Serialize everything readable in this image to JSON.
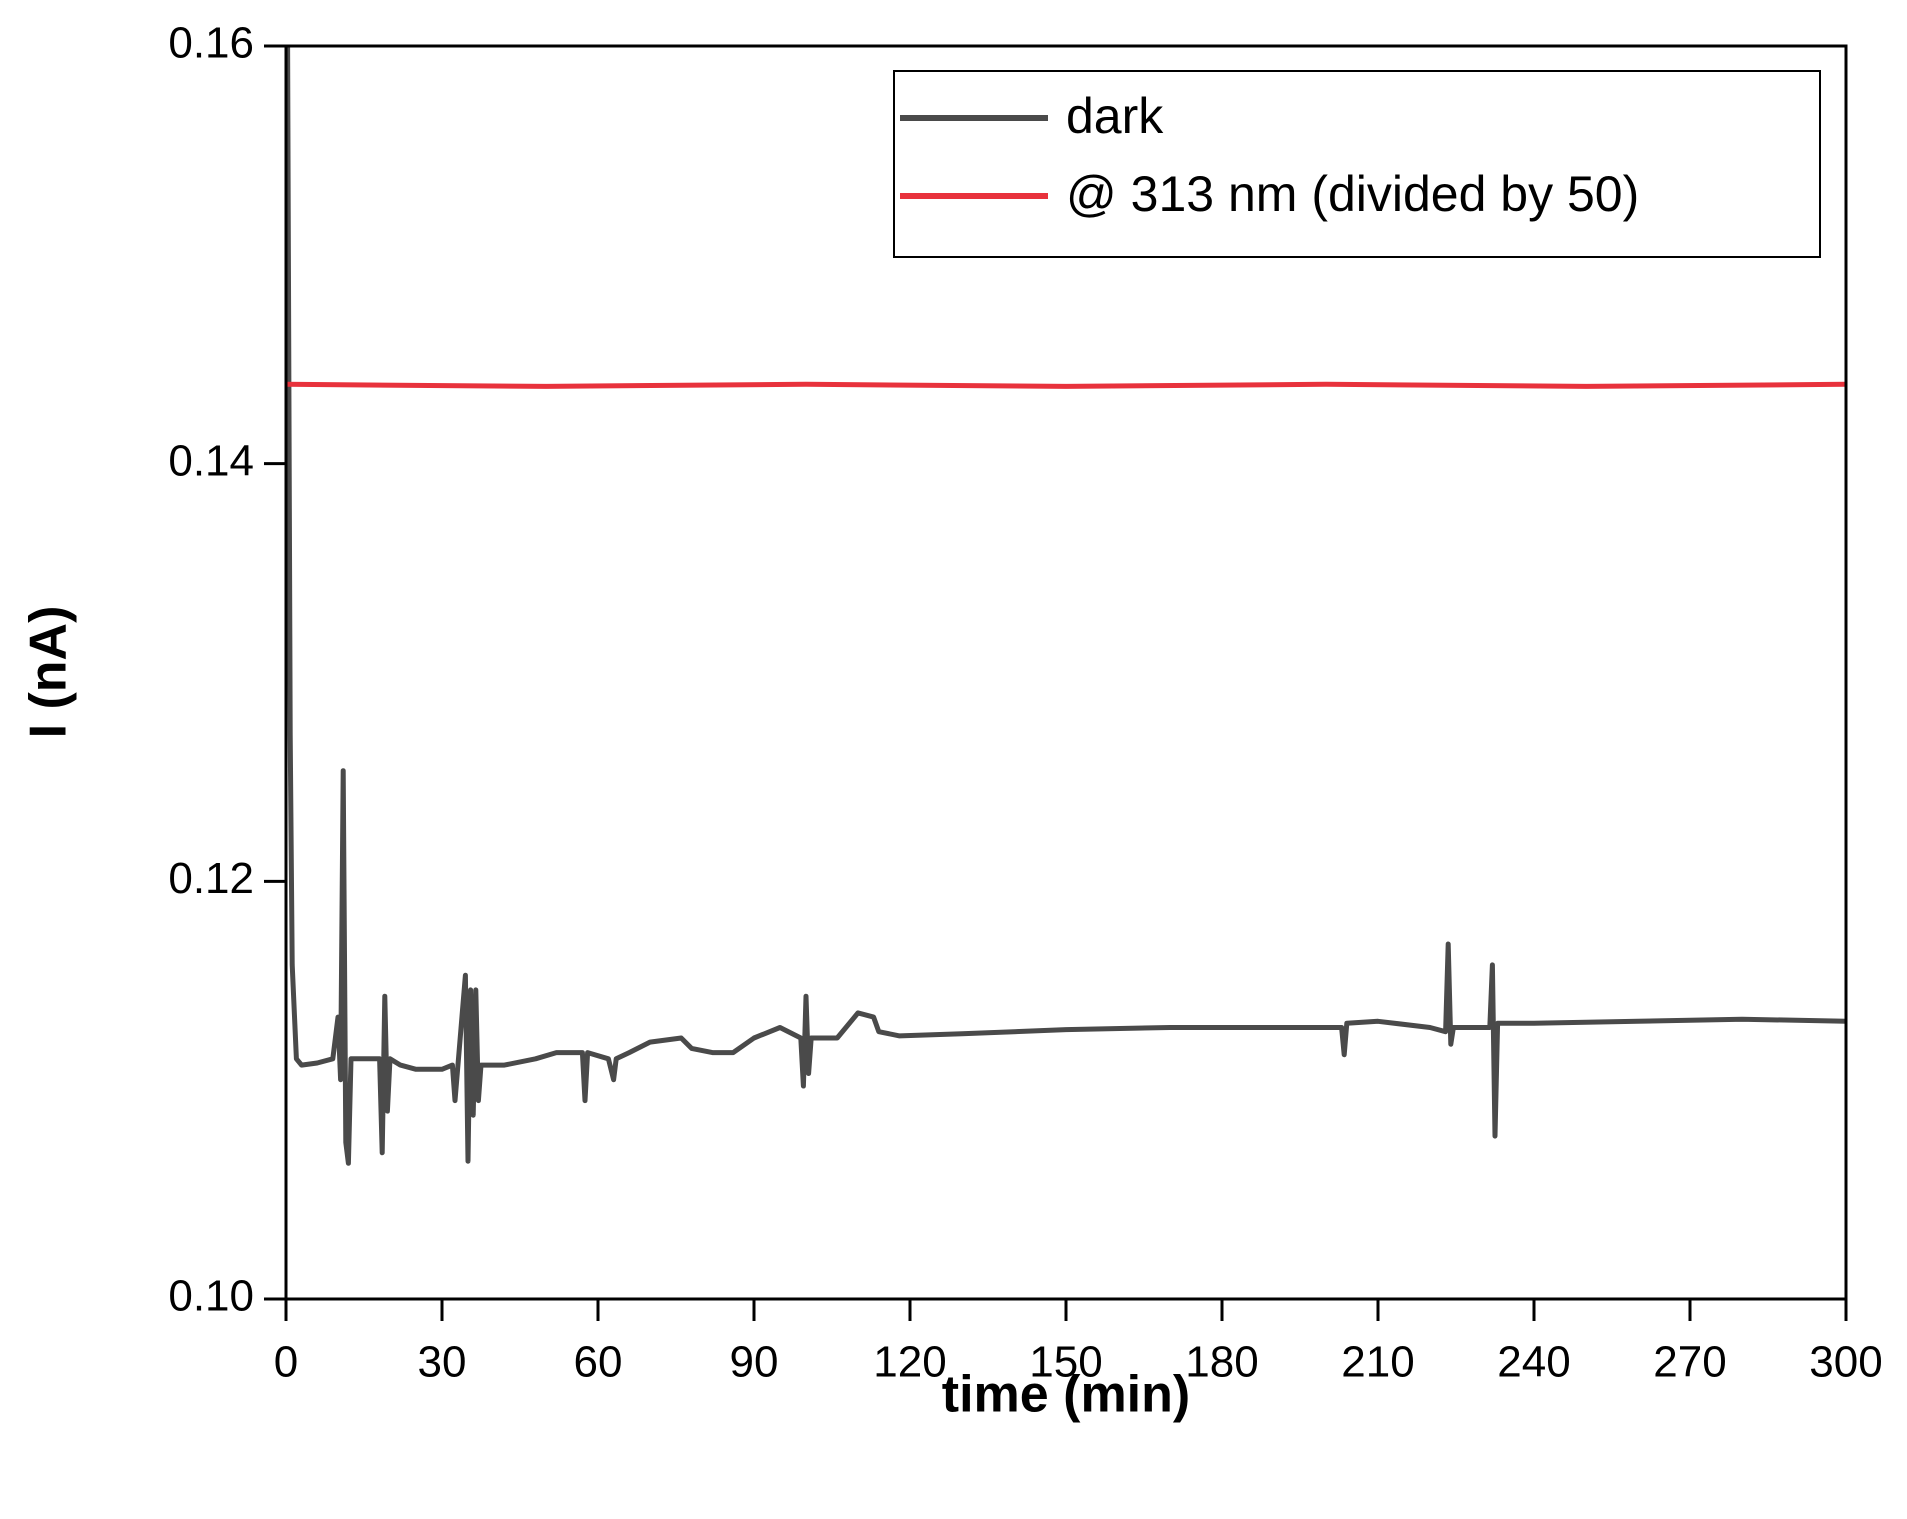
{
  "chart_data": {
    "type": "line",
    "x_label": "time (min)",
    "y_label": "I (nA)",
    "xlim": [
      0,
      300
    ],
    "xticks": [
      0,
      30,
      60,
      90,
      120,
      150,
      180,
      210,
      240,
      270,
      300
    ],
    "ylim": [
      0.1,
      0.16
    ],
    "yticks": [
      {
        "value": 0.1,
        "label": "0.10"
      },
      0.12,
      0.14,
      0.16
    ],
    "legend_position": "upper right",
    "series": [
      {
        "name": "dark",
        "color": "#4a4a4a",
        "x": [
          0.3,
          0.8,
          1.2,
          2,
          3,
          6,
          9,
          10,
          10.5,
          11,
          11.5,
          12,
          12.5,
          15,
          18,
          18.5,
          19,
          19.5,
          20,
          22,
          25,
          30,
          32,
          32.5,
          33,
          34.5,
          35,
          35.5,
          36,
          36.5,
          37,
          37.5,
          42,
          48,
          52,
          57,
          57.5,
          58,
          62,
          63,
          63.5,
          66,
          70,
          76,
          78,
          82,
          86,
          90,
          95,
          99,
          99.5,
          100,
          100.5,
          101,
          106,
          110,
          113,
          114,
          118,
          130,
          150,
          170,
          190,
          203,
          203.5,
          204,
          210,
          220,
          223,
          223.5,
          224,
          224.5,
          230,
          231.5,
          232,
          232.5,
          233,
          240,
          260,
          280,
          300
        ],
        "values": [
          0.16,
          0.127,
          0.116,
          0.1115,
          0.1112,
          0.1113,
          0.1115,
          0.1135,
          0.1105,
          0.1253,
          0.1075,
          0.1065,
          0.1115,
          0.1115,
          0.1115,
          0.107,
          0.1145,
          0.109,
          0.1115,
          0.1112,
          0.111,
          0.111,
          0.1112,
          0.1095,
          0.111,
          0.1155,
          0.1066,
          0.1148,
          0.1088,
          0.1148,
          0.1095,
          0.1112,
          0.1112,
          0.1115,
          0.1118,
          0.1118,
          0.1095,
          0.1118,
          0.1115,
          0.1105,
          0.1115,
          0.1118,
          0.1123,
          0.1125,
          0.112,
          0.1118,
          0.1118,
          0.1125,
          0.113,
          0.1125,
          0.1102,
          0.1145,
          0.1108,
          0.1125,
          0.1125,
          0.1137,
          0.1135,
          0.1128,
          0.1126,
          0.1127,
          0.1129,
          0.113,
          0.113,
          0.113,
          0.1117,
          0.1132,
          0.1133,
          0.113,
          0.1128,
          0.117,
          0.1122,
          0.113,
          0.113,
          0.113,
          0.116,
          0.1078,
          0.1132,
          0.1132,
          0.1133,
          0.1134,
          0.1133
        ]
      },
      {
        "name": "@ 313 nm (divided by 50)",
        "color": "#e8323c",
        "x": [
          0,
          50,
          100,
          150,
          200,
          250,
          300
        ],
        "values": [
          0.1438,
          0.1437,
          0.1438,
          0.1437,
          0.1438,
          0.1437,
          0.1438
        ]
      }
    ]
  }
}
